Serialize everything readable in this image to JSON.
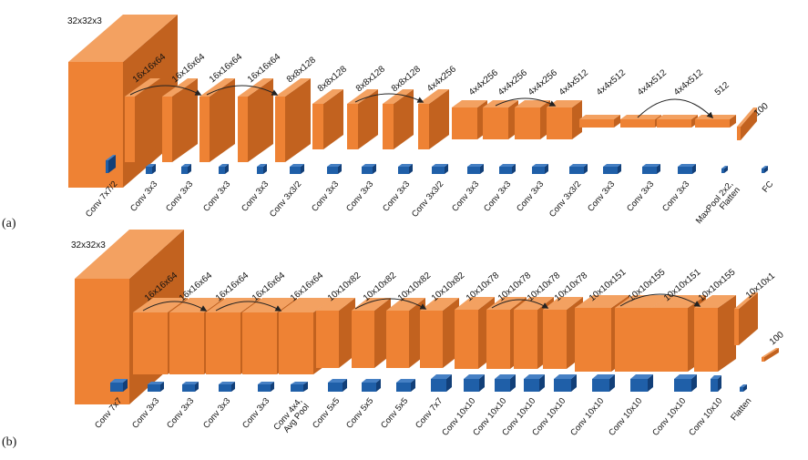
{
  "colors": {
    "tensor_front": "#ee8234",
    "tensor_side": "#c2621f",
    "tensor_top": "#f3a161",
    "kernel_front": "#1f5fa8",
    "kernel_side": "#123f78",
    "kernel_top": "#4680c4",
    "skip_arrow": "#222222"
  },
  "panels": [
    {
      "label": "(a)",
      "input_label": "32x32x3",
      "tensors": [
        {
          "label": "16x16x64"
        },
        {
          "label": "16x16x64"
        },
        {
          "label": "16x16x64"
        },
        {
          "label": "16x16x64"
        },
        {
          "label": "8x8x128"
        },
        {
          "label": "8x8x128"
        },
        {
          "label": "8x8x128"
        },
        {
          "label": "8x8x128"
        },
        {
          "label": "4x4x256"
        },
        {
          "label": "4x4x256"
        },
        {
          "label": "4x4x256"
        },
        {
          "label": "4x4x256"
        },
        {
          "label": "4x4x512"
        },
        {
          "label": "4x4x512"
        },
        {
          "label": "4x4x512"
        },
        {
          "label": "4x4x512"
        },
        {
          "label": "512"
        },
        {
          "label": "100"
        }
      ],
      "ops": [
        {
          "label": "Conv 7x7/2"
        },
        {
          "label": "Conv 3x3"
        },
        {
          "label": "Conv 3x3"
        },
        {
          "label": "Conv 3x3"
        },
        {
          "label": "Conv 3x3"
        },
        {
          "label": "Conv 3x3/2"
        },
        {
          "label": "Conv 3x3"
        },
        {
          "label": "Conv 3x3"
        },
        {
          "label": "Conv 3x3"
        },
        {
          "label": "Conv 3x3/2"
        },
        {
          "label": "Conv 3x3"
        },
        {
          "label": "Conv 3x3"
        },
        {
          "label": "Conv 3x3"
        },
        {
          "label": "Conv 3x3/2"
        },
        {
          "label": "Conv 3x3"
        },
        {
          "label": "Conv 3x3"
        },
        {
          "label": "Conv 3x3"
        },
        {
          "label": "MaxPool 2x2,\nFlatten"
        },
        {
          "label": "FC"
        }
      ]
    },
    {
      "label": "(b)",
      "input_label": "32x32x3",
      "tensors": [
        {
          "label": "16x16x64"
        },
        {
          "label": "16x16x64"
        },
        {
          "label": "16x16x64"
        },
        {
          "label": "16x16x64"
        },
        {
          "label": "16x16x64"
        },
        {
          "label": "10x10x82"
        },
        {
          "label": "10x10x82"
        },
        {
          "label": "10x10x82"
        },
        {
          "label": "10x10x82"
        },
        {
          "label": "10x10x78"
        },
        {
          "label": "10x10x78"
        },
        {
          "label": "10x10x78"
        },
        {
          "label": "10x10x78"
        },
        {
          "label": "10x10x151"
        },
        {
          "label": "10x10x155"
        },
        {
          "label": "10x10x151"
        },
        {
          "label": "10x10x155"
        },
        {
          "label": "10x10x1"
        },
        {
          "label": "100"
        }
      ],
      "ops": [
        {
          "label": "Conv 7x7"
        },
        {
          "label": "Conv 3x3"
        },
        {
          "label": "Conv 3x3"
        },
        {
          "label": "Conv 3x3"
        },
        {
          "label": "Conv 3x3"
        },
        {
          "label": "Conv 4x4,\nAvg Pool"
        },
        {
          "label": "Conv 5x5"
        },
        {
          "label": "Conv 5x5"
        },
        {
          "label": "Conv 5x5"
        },
        {
          "label": "Conv 7x7"
        },
        {
          "label": "Conv 10x10"
        },
        {
          "label": "Conv 10x10"
        },
        {
          "label": "Conv 10x10"
        },
        {
          "label": "Conv 10x10"
        },
        {
          "label": "Conv 10x10"
        },
        {
          "label": "Conv 10x10"
        },
        {
          "label": "Conv 10x10"
        },
        {
          "label": "Conv 10x10"
        },
        {
          "label": "Flatten"
        }
      ]
    }
  ]
}
